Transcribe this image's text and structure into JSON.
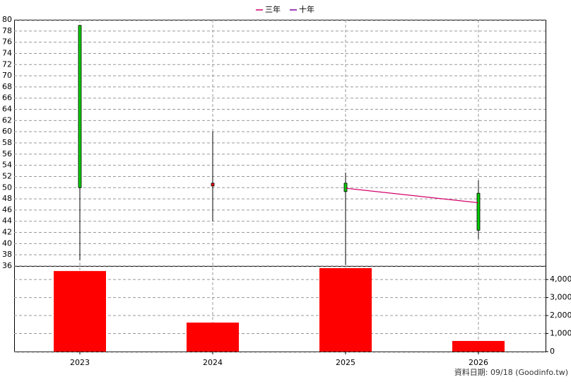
{
  "chart_data": [
    {
      "type": "candlestick",
      "categories": [
        "2023",
        "2024",
        "2025",
        "2026"
      ],
      "open": [
        79,
        50.3,
        50.8,
        49
      ],
      "high": [
        79,
        60,
        52.7,
        51.3
      ],
      "low": [
        37,
        44,
        36.2,
        40.8
      ],
      "close": [
        50,
        50.8,
        49.3,
        42.4
      ],
      "up_color": "#ff0000",
      "down_color": "#00cc00",
      "series": [
        {
          "name": "三年",
          "color": "#d4006a",
          "values": [
            null,
            null,
            49.9,
            47.3
          ]
        },
        {
          "name": "十年",
          "color": "#8000a0",
          "values": [
            null,
            null,
            null,
            null
          ]
        }
      ],
      "ylim": [
        36,
        80
      ],
      "yticks": [
        36,
        38,
        40,
        42,
        44,
        46,
        48,
        50,
        52,
        54,
        56,
        58,
        60,
        62,
        64,
        66,
        68,
        70,
        72,
        74,
        76,
        78,
        80
      ],
      "grid": true
    },
    {
      "type": "bar",
      "values": [
        4470,
        1610,
        4630,
        590
      ],
      "color": "#ff0000",
      "ylim": [
        0,
        4750
      ],
      "yticks": [
        0,
        {
          "value": 1000,
          "label": "1,000"
        },
        {
          "value": 2000,
          "label": "2,000"
        },
        {
          "value": 3000,
          "label": "3,000"
        },
        {
          "value": 4000,
          "label": "4,000"
        }
      ],
      "grid": true
    }
  ],
  "footer": "資料日期: 09/18 (Goodinfo.tw)"
}
